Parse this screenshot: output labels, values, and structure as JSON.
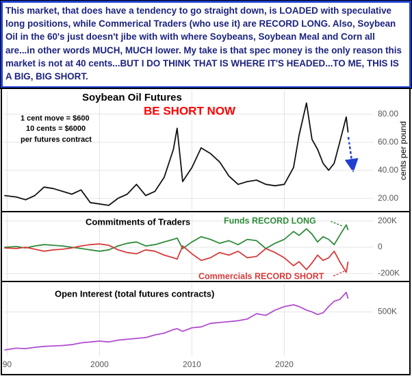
{
  "header": {
    "text": "This market, that does have a tendency to go straight down, is LOADED with speculative long positions, while Commerical Traders (who use it) are RECORD LONG. Also, Soybean Oil in the 60's just doesn't jibe with with where Soybeans, Soybean Meal and Corn all are...in other words MUCH, MUCH lower. My take is that spec money is the only reason this market is not at 40 cents...BUT I DO THINK THAT IS WHERE IT'S HEADED...TO ME, THIS IS A BIG, BIG SHORT."
  },
  "chart_data": [
    {
      "type": "line",
      "title": "Soybean Oil Futures",
      "ylabel": "cents per pound",
      "annotations": [
        "BE SHORT NOW",
        "1 cent move = $600",
        "10 cents = $6000",
        "per futures contract"
      ],
      "x": [
        1989.7,
        1991,
        1992,
        1993,
        1994,
        1995,
        1996,
        1997,
        1998,
        1999,
        2000,
        2001,
        2002,
        2003,
        2004,
        2005,
        2006,
        2007,
        2008,
        2008.4,
        2009,
        2010,
        2011,
        2012,
        2013,
        2014,
        2015,
        2016,
        2017,
        2018,
        2019,
        2020,
        2021,
        2021.6,
        2022.4,
        2023,
        2023.6,
        2024.2,
        2024.8,
        2025.4,
        2026,
        2026.7,
        2026.9
      ],
      "series": [
        {
          "name": "Soybean Oil",
          "color": "#111111",
          "values": [
            22,
            21,
            19,
            22,
            28,
            27,
            25,
            23,
            26,
            17,
            16,
            15,
            20,
            23,
            30,
            22,
            25,
            35,
            55,
            70,
            32,
            42,
            56,
            52,
            46,
            36,
            30,
            32,
            33,
            30,
            29,
            30,
            42,
            65,
            88,
            62,
            55,
            45,
            40,
            45,
            60,
            78,
            67
          ]
        }
      ],
      "xlim": [
        1989.6,
        2029.6
      ],
      "ylim": [
        12,
        97
      ],
      "yticks": [
        {
          "value": 20,
          "label": "20.00"
        },
        {
          "value": 40,
          "label": "40.00"
        },
        {
          "value": 60,
          "label": "60.00"
        },
        {
          "value": 80,
          "label": "80.00"
        }
      ],
      "grid": true
    },
    {
      "type": "line",
      "title": "Commitments of Traders",
      "annotations": [
        "Funds RECORD LONG",
        "Commercials RECORD SHORT"
      ],
      "x": [
        1989.7,
        1991,
        1992,
        1993,
        1994,
        1995,
        1996,
        1997,
        1998,
        1999,
        2000,
        2001,
        2002,
        2003,
        2004,
        2005,
        2006,
        2007,
        2008,
        2008.4,
        2009,
        2010,
        2011,
        2012,
        2013,
        2014,
        2015,
        2016,
        2017,
        2018,
        2019,
        2020,
        2021,
        2021.6,
        2022.4,
        2023,
        2023.6,
        2024.2,
        2024.8,
        2025.4,
        2026,
        2026.7,
        2026.9
      ],
      "series": [
        {
          "name": "Funds",
          "color": "#2e8b3a",
          "values": [
            0,
            5000,
            -5000,
            10000,
            20000,
            15000,
            10000,
            0,
            -10000,
            -20000,
            -30000,
            -20000,
            10000,
            30000,
            40000,
            10000,
            20000,
            40000,
            60000,
            70000,
            -10000,
            40000,
            80000,
            60000,
            30000,
            50000,
            20000,
            60000,
            50000,
            -10000,
            30000,
            60000,
            120000,
            90000,
            140000,
            100000,
            40000,
            80000,
            60000,
            20000,
            90000,
            170000,
            130000
          ]
        },
        {
          "name": "Commercials",
          "color": "#d63a3a",
          "values": [
            -5000,
            -10000,
            0,
            -15000,
            -30000,
            -20000,
            -15000,
            -5000,
            10000,
            20000,
            25000,
            15000,
            -20000,
            -40000,
            -50000,
            -20000,
            -30000,
            -60000,
            -80000,
            -90000,
            10000,
            -50000,
            -100000,
            -80000,
            -40000,
            -60000,
            -30000,
            -80000,
            -70000,
            -10000,
            -40000,
            -80000,
            -140000,
            -110000,
            -170000,
            -120000,
            -60000,
            -100000,
            -80000,
            -30000,
            -110000,
            -190000,
            -110000
          ]
        }
      ],
      "xlim": [
        1989.6,
        2029.6
      ],
      "ylim": [
        -250000,
        250000
      ],
      "yticks": [
        {
          "value": 200000,
          "label": "200K"
        },
        0,
        {
          "value": -200000,
          "label": "-200K"
        }
      ],
      "grid": true
    },
    {
      "type": "line",
      "title": "Open Interest (total futures contracts)",
      "x": [
        1989.7,
        1991,
        1992,
        1993,
        1994,
        1995,
        1996,
        1997,
        1998,
        1999,
        2000,
        2001,
        2002,
        2003,
        2004,
        2005,
        2006,
        2007,
        2008,
        2008.4,
        2009,
        2010,
        2011,
        2012,
        2013,
        2014,
        2015,
        2016,
        2017,
        2018,
        2019,
        2020,
        2021,
        2021.6,
        2022.4,
        2023,
        2023.6,
        2024.2,
        2024.8,
        2025.4,
        2026,
        2026.7,
        2026.9
      ],
      "series": [
        {
          "name": "Open Interest",
          "color": "#b04cd0",
          "values": [
            70000,
            90000,
            85000,
            100000,
            110000,
            115000,
            120000,
            130000,
            150000,
            160000,
            170000,
            160000,
            180000,
            190000,
            200000,
            210000,
            240000,
            260000,
            300000,
            310000,
            280000,
            320000,
            330000,
            370000,
            380000,
            390000,
            400000,
            420000,
            480000,
            460000,
            520000,
            560000,
            580000,
            560000,
            520000,
            500000,
            470000,
            490000,
            560000,
            620000,
            640000,
            720000,
            650000
          ]
        }
      ],
      "xlim": [
        1989.6,
        2029.6
      ],
      "ylim": [
        0,
        820000
      ],
      "yticks": [
        {
          "value": 500000,
          "label": "500K"
        }
      ],
      "xticks": [
        {
          "value": 1990,
          "label": "90"
        },
        2000,
        2010,
        2020
      ],
      "grid": true
    }
  ]
}
